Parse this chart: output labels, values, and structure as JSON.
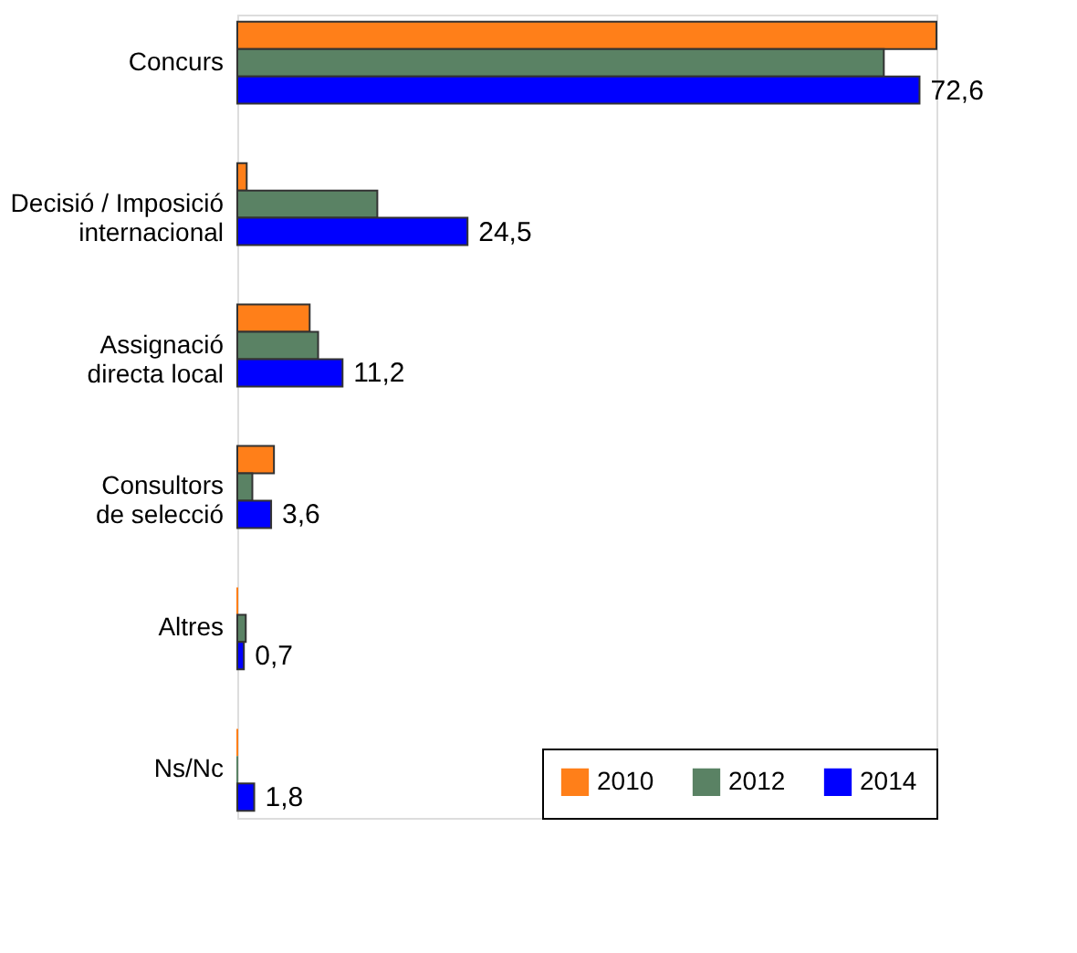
{
  "chart_data": {
    "type": "bar",
    "orientation": "horizontal",
    "categories": [
      "Concurs",
      "Decisió / Imposició internacional",
      "Assignació directa local",
      "Consultors de selecció",
      "Altres",
      "Ns/Nc"
    ],
    "series": [
      {
        "name": "2010",
        "color": "#ff7f19",
        "values": [
          74.4,
          1.0,
          7.7,
          3.9,
          0,
          0
        ]
      },
      {
        "name": "2012",
        "color": "#5a8264",
        "values": [
          68.8,
          14.9,
          8.6,
          1.6,
          0.9,
          0
        ]
      },
      {
        "name": "2014",
        "color": "#0000ff",
        "values": [
          72.6,
          24.5,
          11.2,
          3.6,
          0.7,
          1.8
        ],
        "value_labels": [
          "72,6",
          "24,5",
          "11,2",
          "3,6",
          "0,7",
          "1,8"
        ]
      }
    ],
    "legend": "bottom right"
  }
}
